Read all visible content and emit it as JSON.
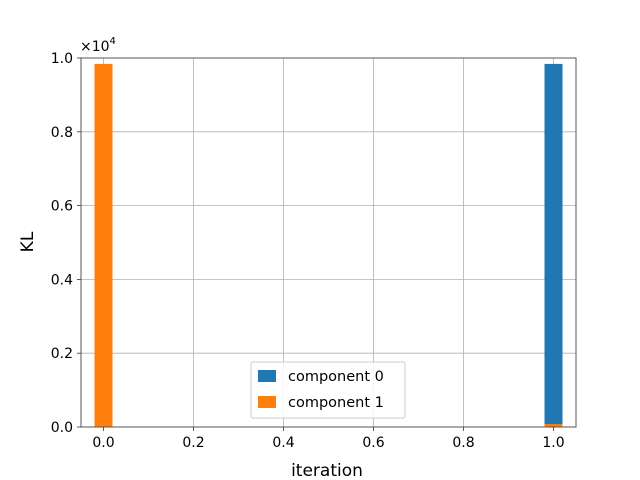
{
  "chart_data": {
    "type": "bar",
    "xlabel": "iteration",
    "ylabel": "KL",
    "y_multiplier_label": "×10",
    "y_multiplier_exp": "4",
    "xlim": [
      -0.05,
      1.05
    ],
    "ylim": [
      0,
      1.0
    ],
    "x_ticks": [
      0.0,
      0.2,
      0.4,
      0.6,
      0.8,
      1.0
    ],
    "x_tick_labels": [
      "0.0",
      "0.2",
      "0.4",
      "0.6",
      "0.8",
      "1.0"
    ],
    "y_ticks": [
      0.0,
      0.2,
      0.4,
      0.6,
      0.8,
      1.0
    ],
    "y_tick_labels": [
      "0.0",
      "0.2",
      "0.4",
      "0.6",
      "0.8",
      "1.0"
    ],
    "grid": true,
    "legend_position": "lower-center",
    "bar_width": 0.04,
    "series": [
      {
        "name": "component 0",
        "color": "#1f77b4",
        "bars": [
          {
            "x": 0.0,
            "value": 0.0
          },
          {
            "x": 1.0,
            "value": 0.984
          }
        ]
      },
      {
        "name": "component 1",
        "color": "#ff7f0e",
        "bars": [
          {
            "x": 0.0,
            "value": 0.984
          },
          {
            "x": 1.0,
            "value": 0.008
          }
        ]
      }
    ]
  }
}
